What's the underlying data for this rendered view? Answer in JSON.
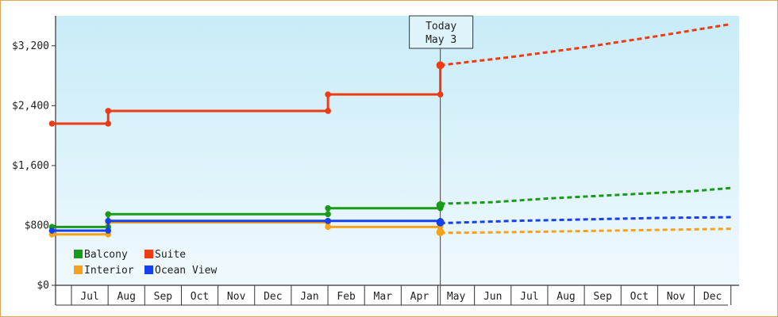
{
  "chart_data": {
    "type": "line",
    "title": "",
    "xlabel": "",
    "ylabel": "",
    "ylim": [
      0,
      3600
    ],
    "y_ticks": [
      "$0",
      "$800",
      "$1,600",
      "$2,400",
      "$3,200"
    ],
    "x_ticks": [
      "Jul",
      "Aug",
      "Sep",
      "Oct",
      "Nov",
      "Dec",
      "Jan",
      "Feb",
      "Mar",
      "Apr",
      "May",
      "Jun",
      "Jul",
      "Aug",
      "Sep",
      "Oct",
      "Nov",
      "Dec"
    ],
    "today": {
      "line1": "Today",
      "line2": "May 3"
    },
    "legend": {
      "placement": "bottom-left"
    },
    "series": [
      {
        "name": "Balcony",
        "color": "#1a9a1a",
        "history": [
          [
            "Jun 15",
            780
          ],
          [
            "Aug 1",
            780
          ],
          [
            "Aug 1",
            950
          ],
          [
            "Feb 1",
            950
          ],
          [
            "Feb 1",
            1030
          ],
          [
            "May 3",
            1030
          ],
          [
            "May 3",
            1070
          ]
        ],
        "forecast": [
          [
            "May 3",
            1090
          ],
          [
            "Jun 15",
            1110
          ],
          [
            "Aug 1",
            1160
          ],
          [
            "Oct 1",
            1210
          ],
          [
            "Dec 1",
            1260
          ],
          [
            "Jan 1",
            1300
          ]
        ]
      },
      {
        "name": "Suite",
        "color": "#ee3b14",
        "history": [
          [
            "Jun 15",
            2160
          ],
          [
            "Aug 1",
            2160
          ],
          [
            "Aug 1",
            2330
          ],
          [
            "Feb 1",
            2330
          ],
          [
            "Feb 1",
            2550
          ],
          [
            "May 3",
            2550
          ],
          [
            "May 3",
            2940
          ]
        ],
        "forecast": [
          [
            "May 3",
            2940
          ],
          [
            "Jul 1",
            3050
          ],
          [
            "Sep 1",
            3180
          ],
          [
            "Nov 1",
            3330
          ],
          [
            "Jan 1",
            3490
          ]
        ]
      },
      {
        "name": "Interior",
        "color": "#f5a21a",
        "history": [
          [
            "Jun 15",
            680
          ],
          [
            "Aug 1",
            680
          ],
          [
            "Aug 1",
            840
          ],
          [
            "Feb 1",
            840
          ],
          [
            "Feb 1",
            780
          ],
          [
            "May 3",
            780
          ],
          [
            "May 3",
            710
          ]
        ],
        "forecast": [
          [
            "May 3",
            700
          ],
          [
            "Jul 1",
            710
          ],
          [
            "Sep 1",
            725
          ],
          [
            "Nov 1",
            740
          ],
          [
            "Jan 1",
            755
          ]
        ]
      },
      {
        "name": "Ocean View",
        "color": "#1440ee",
        "history": [
          [
            "Jun 15",
            730
          ],
          [
            "Aug 1",
            730
          ],
          [
            "Aug 1",
            860
          ],
          [
            "Feb 1",
            860
          ],
          [
            "Feb 1",
            860
          ],
          [
            "May 3",
            860
          ],
          [
            "May 3",
            840
          ]
        ],
        "forecast": [
          [
            "May 3",
            830
          ],
          [
            "Jul 1",
            860
          ],
          [
            "Sep 1",
            880
          ],
          [
            "Nov 1",
            900
          ],
          [
            "Jan 1",
            910
          ]
        ]
      }
    ]
  }
}
